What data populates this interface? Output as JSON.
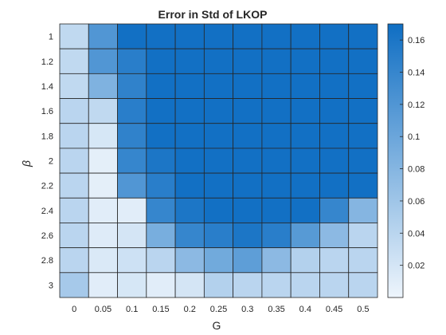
{
  "chart_data": {
    "type": "heatmap",
    "title": "Error in Std of LKOP",
    "xlabel": "G",
    "ylabel": "β",
    "x_categories": [
      "0",
      "0.05",
      "0.1",
      "0.15",
      "0.2",
      "0.25",
      "0.3",
      "0.35",
      "0.4",
      "0.45",
      "0.5"
    ],
    "y_categories": [
      "1",
      "1.2",
      "1.4",
      "1.6",
      "1.8",
      "2",
      "2.2",
      "2.4",
      "2.6",
      "2.8",
      "3"
    ],
    "values": [
      [
        0.035,
        0.12,
        0.168,
        0.168,
        0.168,
        0.168,
        0.168,
        0.168,
        0.168,
        0.168,
        0.168
      ],
      [
        0.035,
        0.12,
        0.15,
        0.168,
        0.168,
        0.168,
        0.168,
        0.168,
        0.168,
        0.168,
        0.168
      ],
      [
        0.035,
        0.085,
        0.145,
        0.168,
        0.168,
        0.168,
        0.168,
        0.168,
        0.168,
        0.168,
        0.168
      ],
      [
        0.04,
        0.035,
        0.15,
        0.168,
        0.168,
        0.168,
        0.168,
        0.168,
        0.168,
        0.168,
        0.168
      ],
      [
        0.04,
        0.018,
        0.145,
        0.168,
        0.168,
        0.168,
        0.168,
        0.168,
        0.168,
        0.168,
        0.168
      ],
      [
        0.04,
        0.008,
        0.14,
        0.16,
        0.168,
        0.168,
        0.168,
        0.168,
        0.168,
        0.168,
        0.168
      ],
      [
        0.04,
        0.008,
        0.12,
        0.15,
        0.168,
        0.168,
        0.168,
        0.168,
        0.168,
        0.168,
        0.168
      ],
      [
        0.04,
        0.01,
        0.01,
        0.14,
        0.16,
        0.168,
        0.168,
        0.168,
        0.168,
        0.14,
        0.08
      ],
      [
        0.04,
        0.012,
        0.02,
        0.09,
        0.14,
        0.15,
        0.16,
        0.15,
        0.115,
        0.075,
        0.04
      ],
      [
        0.04,
        0.015,
        0.025,
        0.04,
        0.075,
        0.095,
        0.11,
        0.075,
        0.045,
        0.04,
        0.04
      ],
      [
        0.055,
        0.01,
        0.018,
        0.01,
        0.02,
        0.045,
        0.04,
        0.04,
        0.04,
        0.04,
        0.04
      ]
    ],
    "colorbar": {
      "range": [
        0,
        0.17
      ],
      "ticks": [
        "0.02",
        "0.04",
        "0.06",
        "0.08",
        "0.1",
        "0.12",
        "0.14",
        "0.16"
      ],
      "tick_values": [
        0.02,
        0.04,
        0.06,
        0.08,
        0.1,
        0.12,
        0.14,
        0.16
      ],
      "color_low": "#eef5fc",
      "color_high": "#0f6ec3"
    },
    "colors": {
      "grid_line": "#262626",
      "text": "#262626"
    }
  }
}
